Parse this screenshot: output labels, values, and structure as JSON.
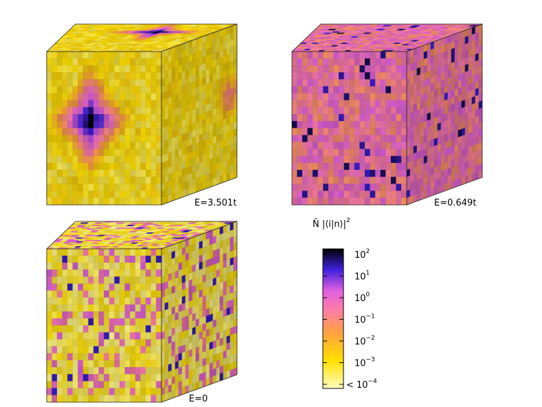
{
  "panels": [
    {
      "label": "E=3.501t"
    },
    {
      "label": "E=0.649t"
    },
    {
      "label": "E=0"
    }
  ],
  "colorbar": {
    "title": {
      "text": "N̄ |⟨i|n⟩|",
      "exponent": "2"
    },
    "ticks": [
      {
        "base": "10",
        "exponent": "2"
      },
      {
        "base": "10",
        "exponent": "1"
      },
      {
        "base": "10",
        "exponent": "0"
      },
      {
        "base": "10",
        "exponent": "−1"
      },
      {
        "base": "10",
        "exponent": "−2"
      },
      {
        "base": "10",
        "exponent": "−3"
      },
      {
        "prefix": "<",
        "base": "10",
        "exponent": "−4"
      }
    ]
  }
}
